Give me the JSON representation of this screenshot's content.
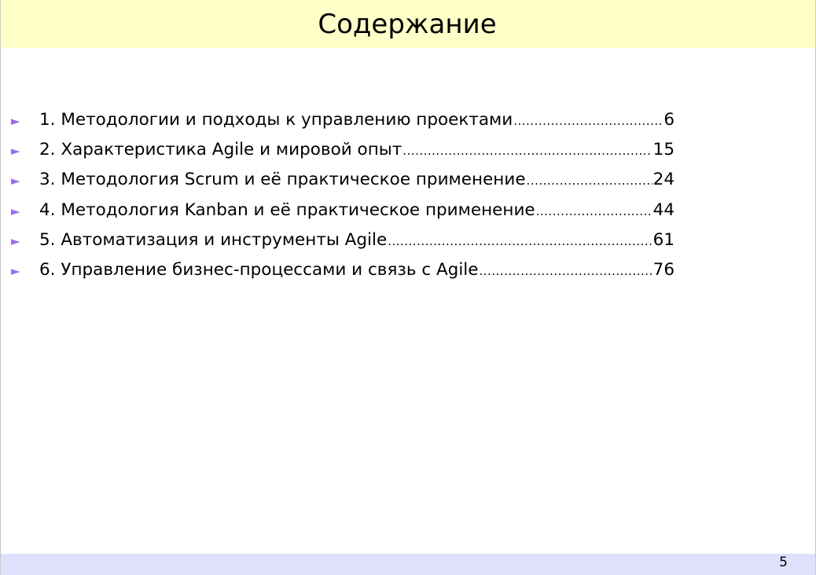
{
  "slide": {
    "title": "Содержание",
    "page_number": "5",
    "colors": {
      "title_bar": "#ffffc8",
      "footer_bar": "#e0e0fc",
      "bullet": "#9b6cf0"
    },
    "bullet_icon": "triangle-right",
    "toc": [
      {
        "label": "1. Методологии и подходы к управлению проектами",
        "page": "6"
      },
      {
        "label": "2. Характеристика Agile и мировой опыт",
        "page": "15"
      },
      {
        "label": "3. Методология Scrum и её практическое применение",
        "page": "24"
      },
      {
        "label": "4. Методология Kanban и её практическое применение",
        "page": "44"
      },
      {
        "label": "5. Автоматизация и инструменты Agile",
        "page": "61"
      },
      {
        "label": "6. Управление бизнес-процессами и связь с Agile",
        "page": "76"
      }
    ]
  }
}
